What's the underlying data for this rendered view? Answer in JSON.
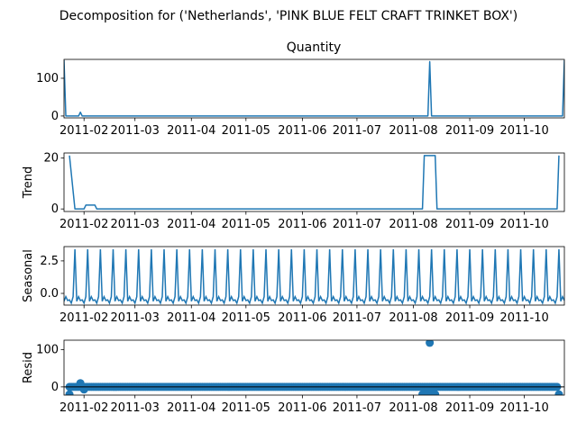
{
  "figure": {
    "suptitle": "Decomposition for ('Netherlands', 'PINK BLUE FELT CRAFT TRINKET BOX')"
  },
  "colors": {
    "series": "#1f77b4",
    "axes": "#000000",
    "background": "#ffffff"
  },
  "chart_data": [
    {
      "type": "line",
      "title": "Quantity",
      "xlabel": "",
      "ylabel": "",
      "x_range": [
        "2011-01-21",
        "2011-10-23"
      ],
      "ylim": [
        -5,
        150
      ],
      "yticks": [
        0,
        100
      ],
      "xticks": [
        "2011-02",
        "2011-03",
        "2011-04",
        "2011-05",
        "2011-06",
        "2011-07",
        "2011-08",
        "2011-09",
        "2011-10"
      ],
      "grid": false,
      "series": [
        {
          "x": [
            "2011-01-21",
            "2011-01-22",
            "2011-01-23",
            "2011-01-29",
            "2011-01-30",
            "2011-01-31",
            "2011-08-09",
            "2011-08-10",
            "2011-08-11",
            "2011-10-22",
            "2011-10-23"
          ],
          "y": [
            148,
            0,
            0,
            0,
            10,
            0,
            0,
            144,
            0,
            0,
            148
          ]
        }
      ]
    },
    {
      "type": "line",
      "title": "",
      "xlabel": "",
      "ylabel": "Trend",
      "x_range": [
        "2011-01-21",
        "2011-10-23"
      ],
      "ylim": [
        -1,
        22
      ],
      "yticks": [
        0,
        20
      ],
      "xticks": [
        "2011-02",
        "2011-03",
        "2011-04",
        "2011-05",
        "2011-06",
        "2011-07",
        "2011-08",
        "2011-09",
        "2011-10"
      ],
      "grid": false,
      "series": [
        {
          "x": [
            "2011-01-24",
            "2011-01-27",
            "2011-02-01",
            "2011-02-02",
            "2011-02-07",
            "2011-02-08",
            "2011-08-06",
            "2011-08-07",
            "2011-08-13",
            "2011-08-14",
            "2011-10-19",
            "2011-10-20"
          ],
          "y": [
            21,
            0,
            0,
            1.5,
            1.5,
            0,
            0,
            21,
            21,
            0,
            0,
            21
          ]
        }
      ]
    },
    {
      "type": "line",
      "title": "",
      "xlabel": "",
      "ylabel": "Seasonal",
      "x_range": [
        "2011-01-21",
        "2011-10-23"
      ],
      "ylim": [
        -0.9,
        3.6
      ],
      "yticks": [
        0.0,
        2.5
      ],
      "yticklabels": [
        "0.0",
        "2.5"
      ],
      "xticks": [
        "2011-02",
        "2011-03",
        "2011-04",
        "2011-05",
        "2011-06",
        "2011-07",
        "2011-08",
        "2011-09",
        "2011-10"
      ],
      "grid": false,
      "period_days": 7,
      "weekly_pattern": [
        -0.6,
        -0.25,
        -0.55,
        -0.5,
        -0.75,
        -0.25,
        3.4
      ],
      "series": [
        {
          "x_start": "2011-01-21",
          "x_end": "2011-10-23"
        }
      ]
    },
    {
      "type": "scatter",
      "title": "",
      "xlabel": "",
      "ylabel": "Resid",
      "x_range": [
        "2011-01-21",
        "2011-10-23"
      ],
      "ylim": [
        -22,
        125
      ],
      "yticks": [
        0,
        100
      ],
      "xticks": [
        "2011-02",
        "2011-03",
        "2011-04",
        "2011-05",
        "2011-06",
        "2011-07",
        "2011-08",
        "2011-09",
        "2011-10"
      ],
      "grid": false,
      "baseline": 0,
      "near_zero_range": [
        "2011-01-24",
        "2011-10-19"
      ],
      "series": [
        {
          "x": [
            "2011-01-24",
            "2011-01-29",
            "2011-01-30",
            "2011-02-01",
            "2011-08-06",
            "2011-08-07",
            "2011-08-08",
            "2011-08-09",
            "2011-08-10",
            "2011-08-11",
            "2011-08-12",
            "2011-08-13",
            "2011-10-20"
          ],
          "y": [
            -20,
            2,
            10,
            -7,
            -20,
            -20,
            -20,
            -20,
            118,
            -20,
            -20,
            -20,
            -20
          ]
        }
      ]
    }
  ]
}
